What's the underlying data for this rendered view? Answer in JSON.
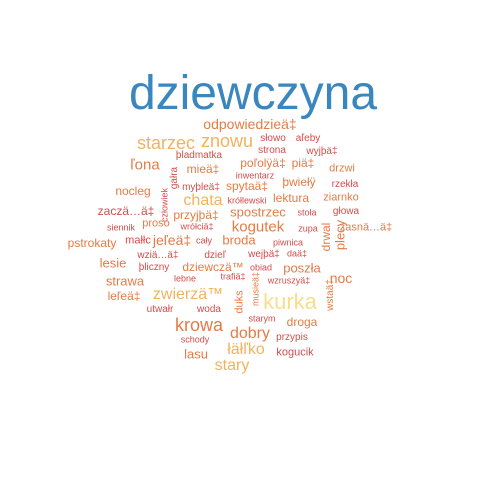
{
  "colors": {
    "blue": "#3a86be",
    "orange": "#e67b45",
    "red": "#d64b4b",
    "gold": "#f2b35d",
    "pale": "#f7df8a"
  },
  "words": [
    {
      "text": "dziewczyna",
      "color": "blue"
    },
    {
      "text": "odpowiedzieä‡",
      "color": "orange"
    },
    {
      "text": "starzec",
      "color": "gold"
    },
    {
      "text": "znowu",
      "color": "gold"
    },
    {
      "text": "słowo",
      "color": "red"
    },
    {
      "text": "aľeby",
      "color": "red"
    },
    {
      "text": "strona",
      "color": "red"
    },
    {
      "text": "wyjþä‡",
      "color": "red"
    },
    {
      "text": "þladmatka",
      "color": "red"
    },
    {
      "text": "poľolÿä‡",
      "color": "orange"
    },
    {
      "text": "piä‡",
      "color": "orange"
    },
    {
      "text": "ľona",
      "color": "orange"
    },
    {
      "text": "mieä‡",
      "color": "orange"
    },
    {
      "text": "drzwi",
      "color": "orange"
    },
    {
      "text": "inwentarz",
      "color": "red"
    },
    {
      "text": "þwiełÿ",
      "color": "orange"
    },
    {
      "text": "spytaä‡",
      "color": "orange"
    },
    {
      "text": "nocleg",
      "color": "orange"
    },
    {
      "text": "gałra",
      "color": "red"
    },
    {
      "text": "rzekła",
      "color": "red"
    },
    {
      "text": "myþleä‡",
      "color": "red"
    },
    {
      "text": "chata",
      "color": "gold"
    },
    {
      "text": "lektura",
      "color": "orange"
    },
    {
      "text": "ziarnko",
      "color": "orange"
    },
    {
      "text": "krółlewski",
      "color": "red"
    },
    {
      "text": "człowiek",
      "color": "red"
    },
    {
      "text": "zaczä…ä‡",
      "color": "red"
    },
    {
      "text": "przyjþä‡",
      "color": "orange"
    },
    {
      "text": "spostrzec",
      "color": "orange"
    },
    {
      "text": "stoła",
      "color": "red"
    },
    {
      "text": "głowa",
      "color": "red"
    },
    {
      "text": "siennik",
      "color": "red"
    },
    {
      "text": "proso",
      "color": "orange"
    },
    {
      "text": "wrółciä‡",
      "color": "red"
    },
    {
      "text": "kogutek",
      "color": "orange"
    },
    {
      "text": "zupa",
      "color": "red"
    },
    {
      "text": "zasnä…ä‡",
      "color": "orange"
    },
    {
      "text": "pstrokaty",
      "color": "orange"
    },
    {
      "text": "małłc",
      "color": "red"
    },
    {
      "text": "jeľeä‡",
      "color": "orange"
    },
    {
      "text": "cały",
      "color": "red"
    },
    {
      "text": "broda",
      "color": "orange"
    },
    {
      "text": "piwnica",
      "color": "red"
    },
    {
      "text": "drwal",
      "color": "orange"
    },
    {
      "text": "plecy",
      "color": "orange"
    },
    {
      "text": "wziä…ä‡",
      "color": "red"
    },
    {
      "text": "dzieľ",
      "color": "red"
    },
    {
      "text": "wejþä‡",
      "color": "red"
    },
    {
      "text": "daä‡",
      "color": "red"
    },
    {
      "text": "lesie",
      "color": "orange"
    },
    {
      "text": "þliczny",
      "color": "red"
    },
    {
      "text": "dziewczä™",
      "color": "orange"
    },
    {
      "text": "obiad",
      "color": "red"
    },
    {
      "text": "poszła",
      "color": "orange"
    },
    {
      "text": "strawa",
      "color": "orange"
    },
    {
      "text": "noc",
      "color": "orange"
    },
    {
      "text": "leľeä‡",
      "color": "orange"
    },
    {
      "text": "zwierzä™",
      "color": "gold"
    },
    {
      "text": "duks",
      "color": "orange"
    },
    {
      "text": "musieä‡",
      "color": "orange"
    },
    {
      "text": "kurka",
      "color": "pale"
    },
    {
      "text": "wstaä‡",
      "color": "orange"
    },
    {
      "text": "lebne",
      "color": "red"
    },
    {
      "text": "trafiä‡",
      "color": "red"
    },
    {
      "text": "wzruszyä‡",
      "color": "red"
    },
    {
      "text": "utwałr",
      "color": "red"
    },
    {
      "text": "woda",
      "color": "red"
    },
    {
      "text": "krowa",
      "color": "orange"
    },
    {
      "text": "starym",
      "color": "red"
    },
    {
      "text": "droga",
      "color": "orange"
    },
    {
      "text": "dobry",
      "color": "orange"
    },
    {
      "text": "schody",
      "color": "red"
    },
    {
      "text": "przypis",
      "color": "red"
    },
    {
      "text": "łäłľko",
      "color": "gold"
    },
    {
      "text": "lasu",
      "color": "orange"
    },
    {
      "text": "kogucik",
      "color": "red"
    },
    {
      "text": "stary",
      "color": "gold"
    }
  ]
}
